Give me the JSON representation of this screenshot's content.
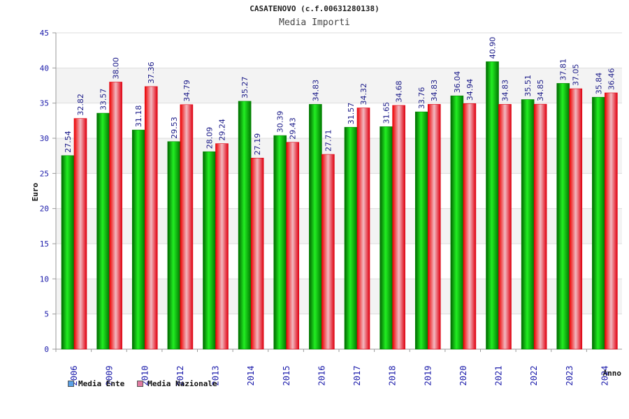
{
  "header": {
    "title": "CASATENOVO (c.f.00631280138)",
    "subtitle": "Media Importi"
  },
  "legend": {
    "ente_label": "Media Ente",
    "nazionale_label": "Media Nazionale",
    "ente_swatch_color": "#5aa0e6",
    "nazionale_swatch_color": "#e07aa0"
  },
  "chart_data": {
    "type": "bar",
    "ylabel": "Euro",
    "xlabel": "Anno",
    "ylim": [
      0,
      45
    ],
    "yticks": [
      0,
      5,
      10,
      15,
      20,
      25,
      30,
      35,
      40,
      45
    ],
    "grid": true,
    "legend_position": "bottom-left",
    "categories": [
      "2006",
      "2009",
      "2010",
      "2012",
      "2013",
      "2014",
      "2015",
      "2016",
      "2017",
      "2018",
      "2019",
      "2020",
      "2021",
      "2022",
      "2023",
      "2024"
    ],
    "series": [
      {
        "name": "Media Ente",
        "color": "#00bb00",
        "values": [
          27.54,
          33.57,
          31.18,
          29.53,
          28.09,
          35.27,
          30.39,
          34.83,
          31.57,
          31.65,
          33.76,
          36.04,
          40.9,
          35.51,
          37.81,
          35.84
        ]
      },
      {
        "name": "Media Nazionale",
        "color": "#ee2233",
        "values": [
          32.82,
          38.0,
          37.36,
          34.79,
          29.24,
          27.19,
          29.43,
          27.71,
          34.32,
          34.68,
          34.83,
          34.94,
          34.83,
          34.85,
          37.05,
          36.46
        ]
      }
    ],
    "value_labels": [
      [
        "27.54",
        "33.57",
        "31.18",
        "29.53",
        "28.09",
        "35.27",
        "30.39",
        "34.83",
        "31.57",
        "31.65",
        "33.76",
        "36.04",
        "40.90",
        "35.51",
        "37.81",
        "35.84"
      ],
      [
        "32.82",
        "38.00",
        "37.36",
        "34.79",
        "29.24",
        "27.19",
        "29.43",
        "27.71",
        "34.32",
        "34.68",
        "34.83",
        "34.94",
        "34.83",
        "34.85",
        "37.05",
        "36.46"
      ]
    ]
  }
}
